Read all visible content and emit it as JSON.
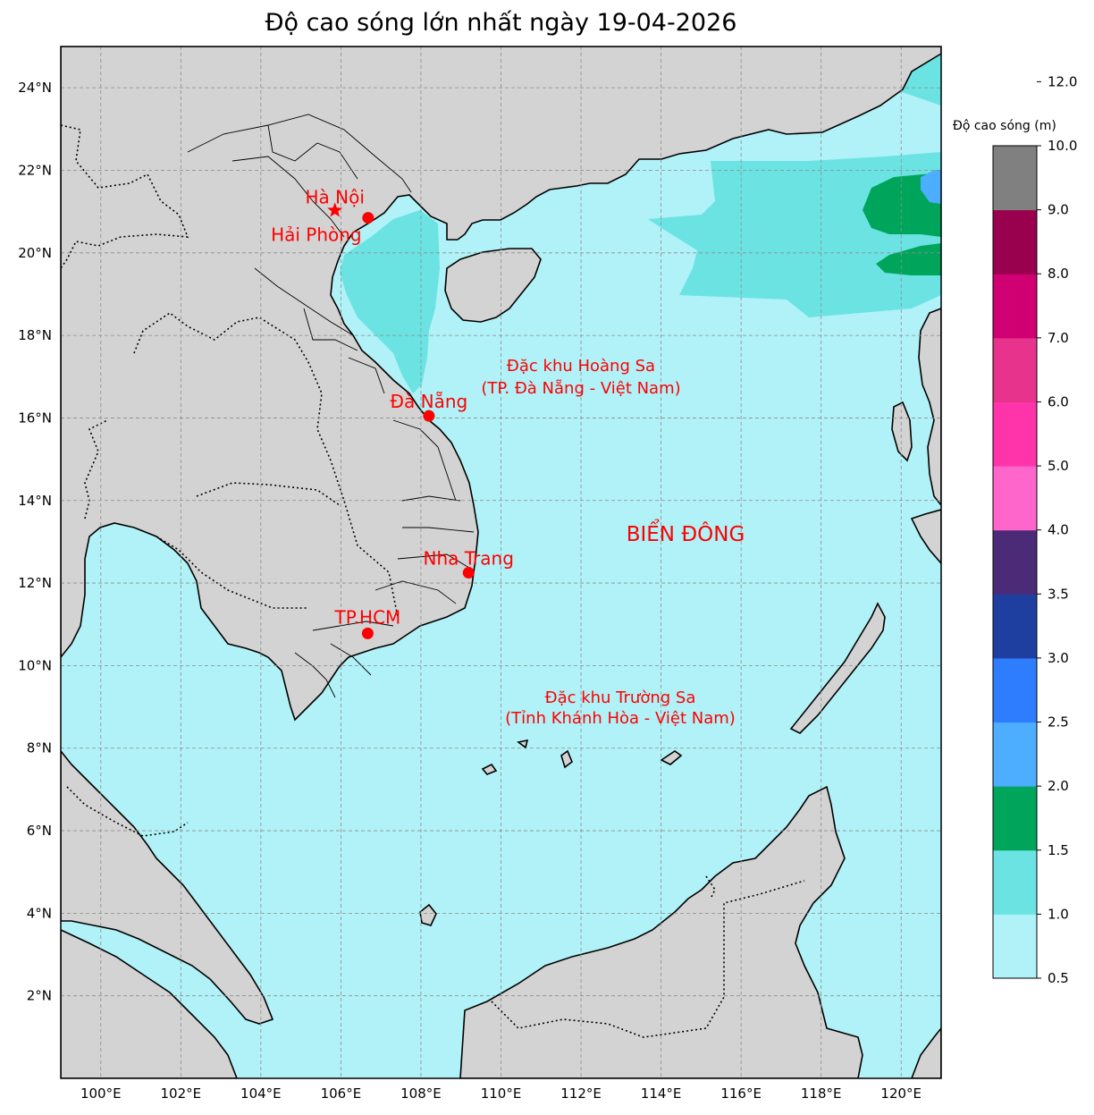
{
  "title": "Độ cao sóng lớn nhất ngày 19-04-2026",
  "lon_ticks": [
    "100°E",
    "102°E",
    "104°E",
    "106°E",
    "108°E",
    "110°E",
    "112°E",
    "114°E",
    "116°E",
    "118°E",
    "120°E"
  ],
  "lat_ticks": [
    "2°N",
    "4°N",
    "6°N",
    "8°N",
    "10°N",
    "12°N",
    "14°N",
    "16°N",
    "18°N",
    "20°N",
    "22°N",
    "24°N"
  ],
  "extent": {
    "lon_min": 99,
    "lon_max": 121,
    "lat_min": 0,
    "lat_max": 25
  },
  "cities": [
    {
      "name": "Hà Nội",
      "marker": "star",
      "lon": 105.85,
      "lat": 21.03
    },
    {
      "name": "Hải Phòng",
      "marker": "dot",
      "lon": 106.68,
      "lat": 20.85
    },
    {
      "name": "Đà Nẵng",
      "marker": "dot",
      "lon": 108.2,
      "lat": 16.05
    },
    {
      "name": "Nha Trang",
      "marker": "dot",
      "lon": 109.19,
      "lat": 12.25
    },
    {
      "name": "TP.HCM",
      "marker": "dot",
      "lon": 106.67,
      "lat": 10.78
    }
  ],
  "annotations": {
    "hoang_sa_1": "Đặc khu Hoàng Sa",
    "hoang_sa_2": "(TP. Đà Nẵng - Việt Nam)",
    "truong_sa_1": "Đặc khu Trường Sa",
    "truong_sa_2": "(Tỉnh Khánh Hòa - Việt Nam)",
    "sea": "BIỂN ĐÔNG"
  },
  "colorbar": {
    "title": "Độ cao sóng (m)",
    "levels": [
      "0.5",
      "1.0",
      "1.5",
      "2.0",
      "2.5",
      "3.0",
      "3.5",
      "4.0",
      "5.0",
      "6.0",
      "7.0",
      "8.0",
      "9.0",
      "10.0",
      "12.0"
    ],
    "colors": [
      "#b0f2f7",
      "#6be3e3",
      "#00a55c",
      "#4dadff",
      "#2e7dff",
      "#1f3fa0",
      "#4b2a77",
      "#ff66cc",
      "#ff33aa",
      "#e8338c",
      "#d00072",
      "#99004d",
      "#808080"
    ]
  },
  "colors": {
    "land": "#d3d3d3",
    "sea": "#b0f2f7",
    "wave_1_1_5": "#6be3e3",
    "wave_1_5_2": "#00a55c",
    "wave_2_2_5": "#4dadff",
    "city": "#ff0000"
  }
}
